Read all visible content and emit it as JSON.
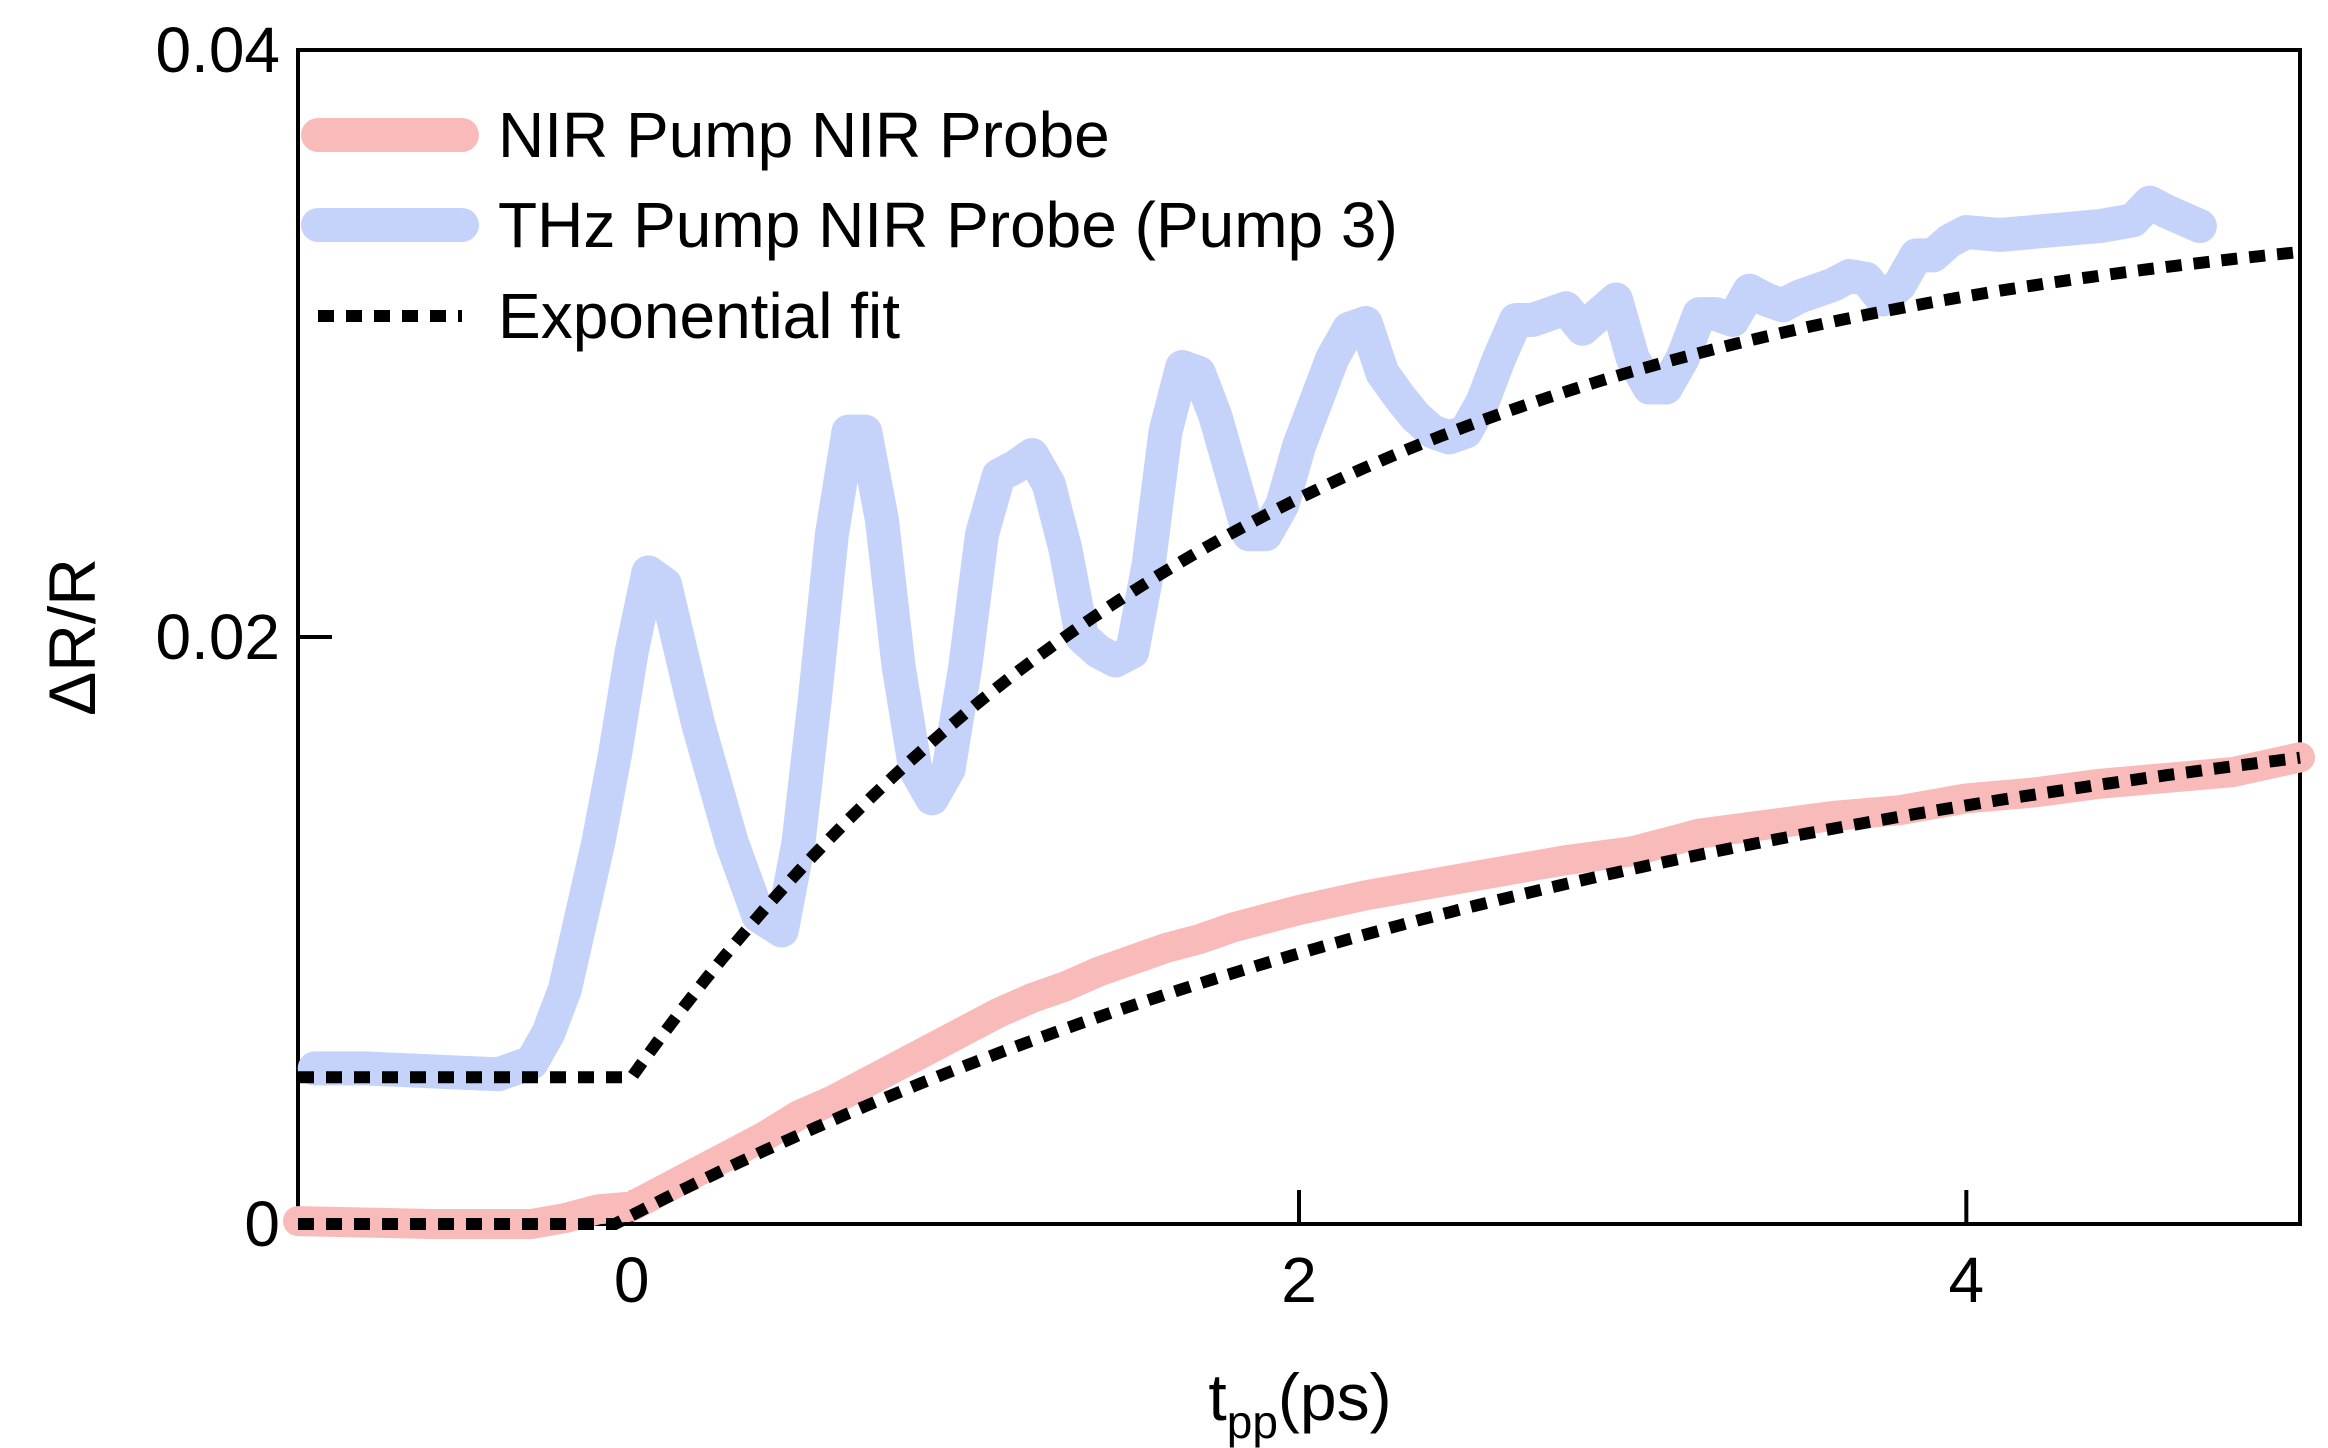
{
  "chart_data": {
    "type": "line",
    "title": "",
    "xlabel": "t",
    "xlabel_sub": "pp",
    "xlabel_unit": "(ps)",
    "ylabel": "ΔR/R",
    "xlim": [
      -1.0,
      5.0
    ],
    "ylim": [
      0,
      0.04
    ],
    "xticks": [
      0,
      2,
      4
    ],
    "xtick_labels": [
      "0",
      "2",
      "4"
    ],
    "yticks": [
      0,
      0.02,
      0.04
    ],
    "ytick_labels": [
      "0",
      "0.02",
      "0.04"
    ],
    "legend_position": "top-left",
    "series": [
      {
        "name": "NIR Pump NIR Probe",
        "color": "#F9BABA",
        "style": "solid",
        "x": [
          -1.0,
          -0.6,
          -0.3,
          -0.2,
          -0.1,
          0.0,
          0.1,
          0.2,
          0.3,
          0.4,
          0.5,
          0.6,
          0.7,
          0.8,
          0.9,
          1.0,
          1.1,
          1.2,
          1.3,
          1.4,
          1.5,
          1.6,
          1.7,
          1.8,
          1.9,
          2.0,
          2.2,
          2.4,
          2.6,
          2.8,
          3.0,
          3.2,
          3.4,
          3.6,
          3.8,
          4.0,
          4.2,
          4.4,
          4.6,
          4.8,
          5.0
        ],
        "y": [
          0.0001,
          0.0,
          0.0,
          0.0002,
          0.0005,
          0.0006,
          0.0012,
          0.0018,
          0.0024,
          0.003,
          0.0037,
          0.0042,
          0.0048,
          0.0054,
          0.006,
          0.0066,
          0.0072,
          0.0077,
          0.0081,
          0.0086,
          0.009,
          0.0094,
          0.0097,
          0.0101,
          0.0104,
          0.0107,
          0.0112,
          0.0116,
          0.012,
          0.0124,
          0.0127,
          0.0133,
          0.0136,
          0.0139,
          0.0141,
          0.0145,
          0.0147,
          0.015,
          0.0152,
          0.0154,
          0.0159
        ]
      },
      {
        "name": "THz Pump NIR Probe (Pump 3)",
        "color": "#C5D3FA",
        "style": "solid",
        "x": [
          -0.95,
          -0.8,
          -0.6,
          -0.4,
          -0.3,
          -0.25,
          -0.2,
          -0.15,
          -0.1,
          -0.05,
          0.0,
          0.05,
          0.1,
          0.2,
          0.3,
          0.38,
          0.45,
          0.5,
          0.55,
          0.6,
          0.65,
          0.7,
          0.75,
          0.8,
          0.85,
          0.9,
          0.95,
          1.0,
          1.05,
          1.1,
          1.15,
          1.2,
          1.25,
          1.3,
          1.35,
          1.4,
          1.45,
          1.5,
          1.55,
          1.6,
          1.65,
          1.7,
          1.75,
          1.8,
          1.85,
          1.9,
          1.95,
          2.0,
          2.05,
          2.1,
          2.15,
          2.2,
          2.25,
          2.3,
          2.35,
          2.4,
          2.45,
          2.5,
          2.55,
          2.6,
          2.65,
          2.7,
          2.75,
          2.8,
          2.85,
          2.9,
          2.95,
          3.0,
          3.05,
          3.1,
          3.15,
          3.2,
          3.25,
          3.3,
          3.35,
          3.4,
          3.45,
          3.5,
          3.55,
          3.6,
          3.65,
          3.7,
          3.75,
          3.8,
          3.85,
          3.9,
          3.95,
          4.0,
          4.1,
          4.2,
          4.3,
          4.4,
          4.5,
          4.55,
          4.6,
          4.7
        ],
        "y": [
          0.0053,
          0.0053,
          0.0052,
          0.0051,
          0.0055,
          0.0065,
          0.008,
          0.0105,
          0.013,
          0.016,
          0.0195,
          0.0222,
          0.0218,
          0.017,
          0.013,
          0.0105,
          0.01,
          0.013,
          0.018,
          0.0235,
          0.027,
          0.027,
          0.024,
          0.019,
          0.0155,
          0.0145,
          0.0155,
          0.019,
          0.0235,
          0.0255,
          0.0258,
          0.0262,
          0.0252,
          0.023,
          0.02,
          0.0195,
          0.0192,
          0.0195,
          0.0225,
          0.027,
          0.0292,
          0.029,
          0.0275,
          0.0255,
          0.0235,
          0.0235,
          0.0245,
          0.0265,
          0.028,
          0.0295,
          0.0305,
          0.0307,
          0.029,
          0.0282,
          0.0275,
          0.027,
          0.0268,
          0.027,
          0.028,
          0.0295,
          0.0308,
          0.0308,
          0.031,
          0.0312,
          0.0305,
          0.031,
          0.0315,
          0.0295,
          0.0285,
          0.0285,
          0.0295,
          0.031,
          0.031,
          0.0308,
          0.0318,
          0.0315,
          0.0313,
          0.0316,
          0.0318,
          0.032,
          0.0323,
          0.0322,
          0.0315,
          0.032,
          0.033,
          0.033,
          0.0335,
          0.0338,
          0.0337,
          0.0338,
          0.0339,
          0.034,
          0.0342,
          0.0348,
          0.0345,
          0.034
        ]
      },
      {
        "name": "Exponential fit",
        "color": "#000000",
        "style": "dotted"
      }
    ],
    "fit_curves": [
      {
        "offset": 0.005,
        "amplitude": 0.0303,
        "tau": 1.9,
        "t0": 0.0,
        "x_start": -1.0,
        "x_end": 5.0
      },
      {
        "offset": 0.0,
        "amplitude": 0.0208,
        "tau": 3.5,
        "t0": -0.05,
        "x_start": -1.0,
        "x_end": 5.0
      }
    ]
  }
}
